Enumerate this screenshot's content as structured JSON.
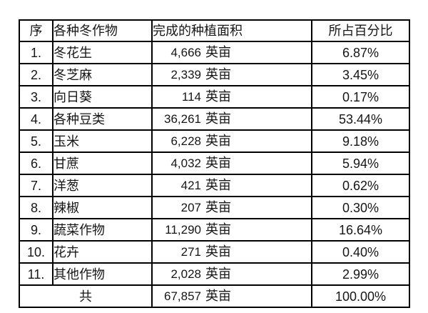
{
  "table": {
    "headers": {
      "no": "序",
      "crop": "各种冬作物",
      "area": "完成的种植面积",
      "pct": "所占百分比"
    },
    "unit": "英亩",
    "rows": [
      {
        "no": "1.",
        "crop": "冬花生",
        "area": "4,666",
        "pct": "6.87%"
      },
      {
        "no": "2.",
        "crop": "冬芝麻",
        "area": "2,339",
        "pct": "3.45%"
      },
      {
        "no": "3.",
        "crop": "向日葵",
        "area": "114",
        "pct": "0.17%"
      },
      {
        "no": "4.",
        "crop": "各种豆类",
        "area": "36,261",
        "pct": "53.44%"
      },
      {
        "no": "5.",
        "crop": "玉米",
        "area": "6,228",
        "pct": "9.18%"
      },
      {
        "no": "6.",
        "crop": "甘蔗",
        "area": "4,032",
        "pct": "5.94%"
      },
      {
        "no": "7.",
        "crop": "洋葱",
        "area": "421",
        "pct": "0.62%"
      },
      {
        "no": "8.",
        "crop": "辣椒",
        "area": "207",
        "pct": "0.30%"
      },
      {
        "no": "9.",
        "crop": "蔬菜作物",
        "area": "11,290",
        "pct": "16.64%"
      },
      {
        "no": "10.",
        "crop": "花卉",
        "area": "271",
        "pct": "0.40%"
      },
      {
        "no": "11.",
        "crop": "其他作物",
        "area": "2,028",
        "pct": "2.99%"
      }
    ],
    "total": {
      "label": "共",
      "area": "67,857",
      "pct": "100.00%"
    }
  }
}
